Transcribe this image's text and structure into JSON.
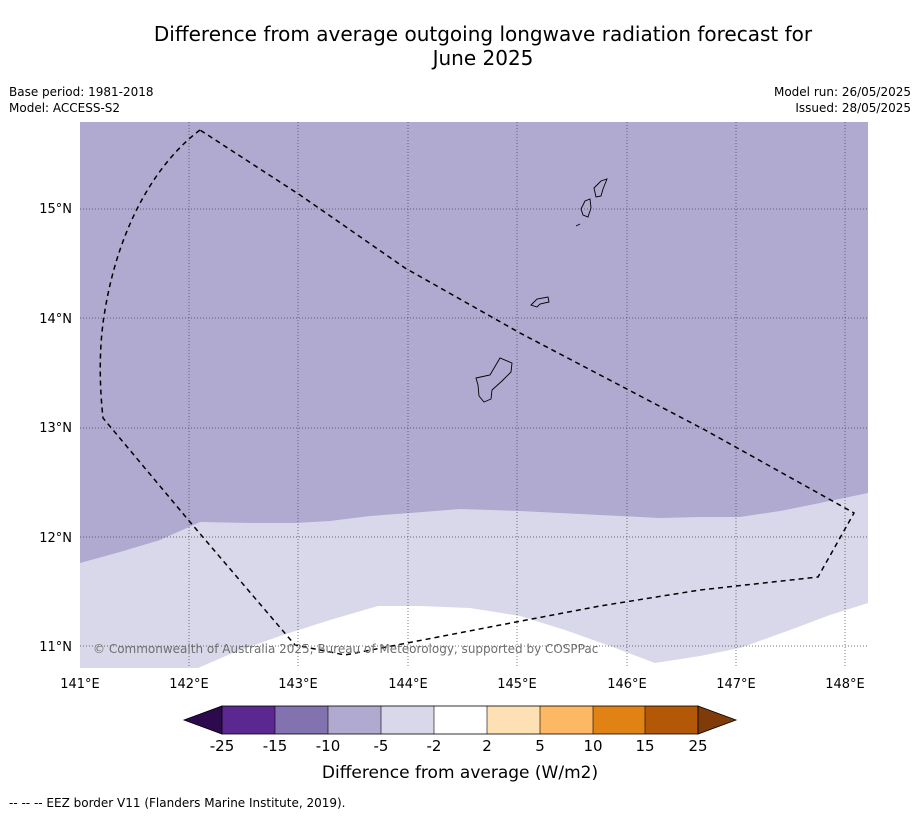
{
  "title": {
    "line1": "Difference from average outgoing longwave radiation forecast for",
    "line2": "June 2025"
  },
  "meta": {
    "base_period": "Base period: 1981-2018",
    "model": "Model: ACCESS-S2",
    "model_run": "Model run: 26/05/2025",
    "issued": "Issued: 28/05/2025"
  },
  "map": {
    "lat_labels": [
      "15°N",
      "14°N",
      "13°N",
      "12°N",
      "11°N"
    ],
    "lon_labels": [
      "141°E",
      "142°E",
      "143°E",
      "144°E",
      "145°E",
      "146°E",
      "147°E",
      "148°E"
    ],
    "copyright": "© Commonwealth of Australia 2025, Bureau of Meteorology, supported by COSPPac"
  },
  "colorbar": {
    "tick_labels": [
      "-25",
      "-15",
      "-10",
      "-5",
      "-2",
      "2",
      "5",
      "10",
      "15",
      "25"
    ],
    "label": "Difference from average (W/m2)",
    "colors": {
      "below_min": "#2d0a4e",
      "-25_-15": "#5a2890",
      "-15_-10": "#8272b0",
      "-10_-5": "#b0a9d0",
      "-5_-2": "#d8d8ea",
      "-2_2": "#ffffff",
      "2_5": "#fde0b4",
      "5_10": "#fdb863",
      "10_15": "#e08214",
      "15_25": "#b35806",
      "above_max": "#7f3b08"
    }
  },
  "footer": {
    "legend": "--  --  -- EEZ border V11 (Flanders Marine Institute, 2019)."
  }
}
